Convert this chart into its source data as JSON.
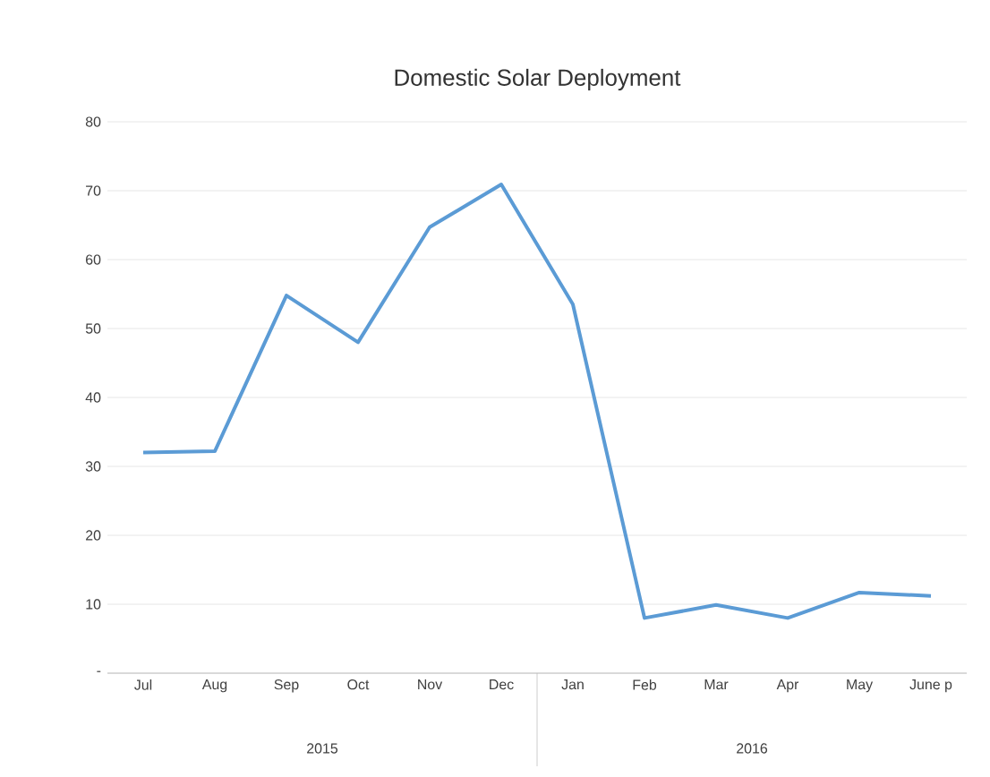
{
  "chart_data": {
    "type": "line",
    "title": "Domestic Solar Deployment",
    "categories": [
      "Jul",
      "Aug",
      "Sep",
      "Oct",
      "Nov",
      "Dec",
      "Jan",
      "Feb",
      "Mar",
      "Apr",
      "May",
      "June p"
    ],
    "series": [
      {
        "color": "#5b9bd5",
        "values": [
          32,
          32.2,
          54.8,
          48,
          64.7,
          70.9,
          53.5,
          8,
          9.9,
          8,
          11.7,
          11.2
        ]
      }
    ],
    "ylim": [
      0,
      80
    ],
    "yticks": [
      {
        "value": 0,
        "label": "-"
      },
      10,
      20,
      30,
      40,
      50,
      60,
      70,
      80
    ],
    "grid": "y",
    "marker": "none",
    "line_style": "solid",
    "annotations": [
      "2015",
      "2016"
    ]
  }
}
